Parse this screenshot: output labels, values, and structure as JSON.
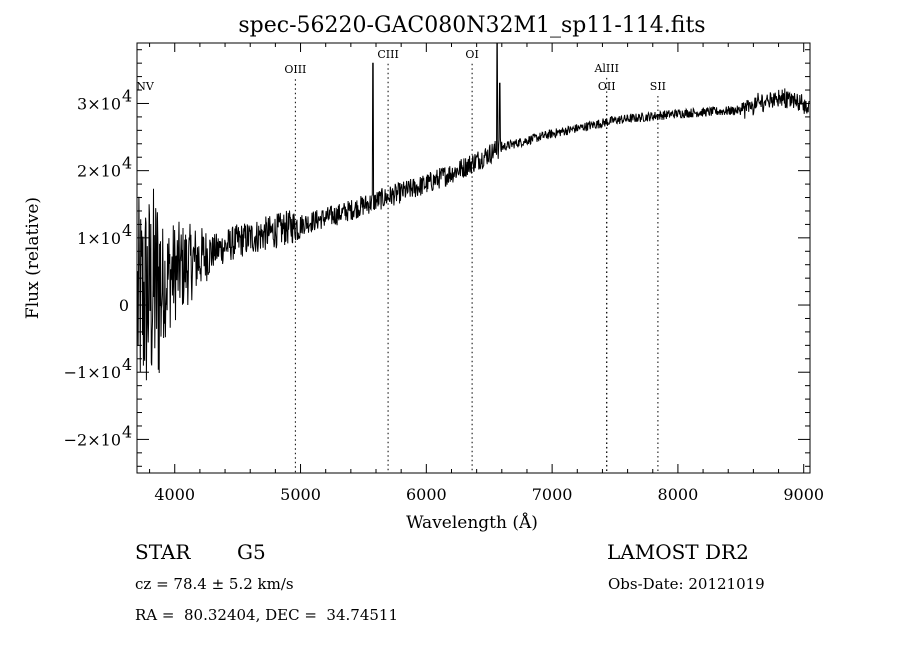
{
  "chart_data": {
    "type": "line",
    "title": "spec-56220-GAC080N32M1_sp11-114.fits",
    "xlabel": "Wavelength (Å)",
    "ylabel": "Flux (relative)",
    "xlim": [
      3700,
      9050
    ],
    "ylim": [
      -25000,
      39000
    ],
    "x_ticks": [
      4000,
      5000,
      6000,
      7000,
      8000,
      9000
    ],
    "x_tick_labels": [
      "4000",
      "5000",
      "6000",
      "7000",
      "8000",
      "9000"
    ],
    "y_ticks": [
      {
        "value": 30000,
        "mantissa": "3×10",
        "exp": "4"
      },
      {
        "value": 20000,
        "mantissa": "2×10",
        "exp": "4"
      },
      {
        "value": 10000,
        "mantissa": "1×10",
        "exp": "4"
      },
      {
        "value": 0,
        "mantissa": "0",
        "exp": ""
      },
      {
        "value": -10000,
        "mantissa": "−1×10",
        "exp": "4"
      },
      {
        "value": -20000,
        "mantissa": "−2×10",
        "exp": "4"
      }
    ],
    "grid": false,
    "lines": [
      {
        "name": "NV",
        "wavelength": 3700,
        "level": 32000
      },
      {
        "name": "OIII",
        "wavelength": 4959,
        "level": 34500
      },
      {
        "name": "CIII",
        "wavelength": 5696,
        "level": 36800
      },
      {
        "name": "OI",
        "wavelength": 6364,
        "level": 36800
      },
      {
        "name": "AlIII",
        "wavelength": 7434,
        "level": 34700
      },
      {
        "name": "OII",
        "wavelength": 7434,
        "level": 32000
      },
      {
        "name": "SII",
        "wavelength": 7841,
        "level": 32000
      }
    ],
    "spectrum_knots": [
      [
        3700,
        0
      ],
      [
        3850,
        2500
      ],
      [
        4000,
        5000
      ],
      [
        4250,
        7500
      ],
      [
        4500,
        9500
      ],
      [
        4800,
        11000
      ],
      [
        5000,
        12000
      ],
      [
        5300,
        13500
      ],
      [
        5600,
        15500
      ],
      [
        6000,
        18000
      ],
      [
        6300,
        20500
      ],
      [
        6600,
        23500
      ],
      [
        7000,
        25500
      ],
      [
        7500,
        27500
      ],
      [
        8000,
        28500
      ],
      [
        8500,
        29000
      ],
      [
        8800,
        31000
      ],
      [
        9000,
        30000
      ],
      [
        9050,
        29500
      ]
    ],
    "spectrum_features": [
      {
        "wavelength": 5577,
        "peak": 36000
      },
      {
        "wavelength": 6563,
        "peak": 39000
      },
      {
        "wavelength": 6583,
        "peak": 33000
      }
    ]
  },
  "info": {
    "object_class": "STAR",
    "subclass": "G5",
    "survey": "LAMOST DR2",
    "velocity": "cz = 78.4 ± 5.2 km/s",
    "obs_date": "Obs-Date: 20121019",
    "coords": "RA =  80.32404, DEC =  34.74511"
  }
}
